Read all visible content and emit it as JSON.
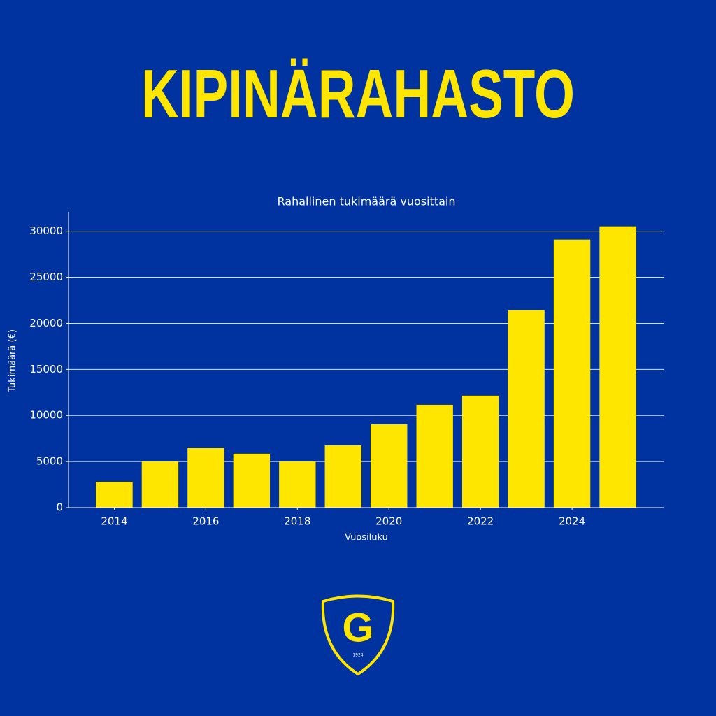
{
  "header": {
    "title": "KIPINÄRAHASTO"
  },
  "chart_data": {
    "type": "bar",
    "title": "Rahallinen tukimäärä vuosittain",
    "x_label": "Vuosiluku",
    "y_label": "Tukimäärä (€)",
    "x": [
      2014,
      2015,
      2016,
      2017,
      2018,
      2019,
      2020,
      2021,
      2022,
      2023,
      2024,
      2025
    ],
    "values": [
      2800,
      5000,
      6450,
      5850,
      5000,
      6760,
      9040,
      11160,
      12150,
      21420,
      29090,
      30530
    ],
    "color": "#ffe600",
    "xlim": [
      2013,
      2026
    ],
    "xticks": [
      2014,
      2016,
      2018,
      2020,
      2022,
      2024
    ],
    "ylim": [
      0,
      32100
    ],
    "yticks": [
      0,
      5000,
      10000,
      15000,
      20000,
      25000,
      30000
    ],
    "grid": true
  },
  "logo": {
    "letter": "G",
    "year": "1924"
  }
}
